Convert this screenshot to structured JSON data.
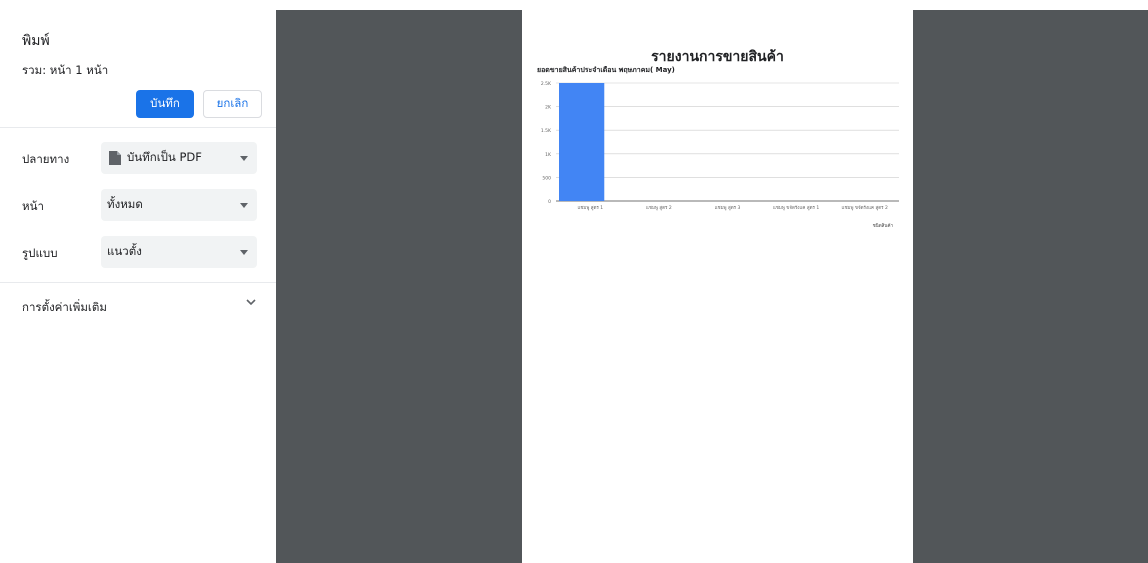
{
  "print_dialog": {
    "title": "พิมพ์",
    "total_pages": "รวม: หน้า 1 หน้า",
    "save_label": "บันทึก",
    "cancel_label": "ยกเลิก",
    "destination": {
      "label": "ปลายทาง",
      "value": "บันทึกเป็น PDF",
      "icon": "file-icon"
    },
    "pages": {
      "label": "หน้า",
      "value": "ทั้งหมด"
    },
    "layout": {
      "label": "รูปแบบ",
      "value": "แนวตั้ง"
    },
    "more_settings": "การตั้งค่าเพิ่มเติม",
    "colors": {
      "accent": "#1a73e8",
      "preview_bg": "#525659",
      "bar": "#4285f4"
    }
  },
  "report": {
    "title": "รายงานการขายสินค้า"
  },
  "chart_data": {
    "type": "bar",
    "title": "ยอดขายสินค้าประจำเดือน พฤษภาคม( May)",
    "categories": [
      "แชมพู สูตร 1",
      "แชมพู สูตร 2",
      "แชมพู สูตร 3",
      "แชมพู ขจัดรังแค สูตร 1",
      "แชมพู ขจัดรังแค สูตร 2"
    ],
    "yticks": [
      "0",
      "500",
      "1K",
      "1.5K",
      "2K",
      "2.5K"
    ],
    "ylim": [
      0,
      2500
    ],
    "series": [
      {
        "values": [
          2500,
          0,
          0,
          0,
          0
        ]
      }
    ],
    "xlabel": "ชนิดสินค้า",
    "ylabel": "",
    "grid": true,
    "legend": "none"
  }
}
